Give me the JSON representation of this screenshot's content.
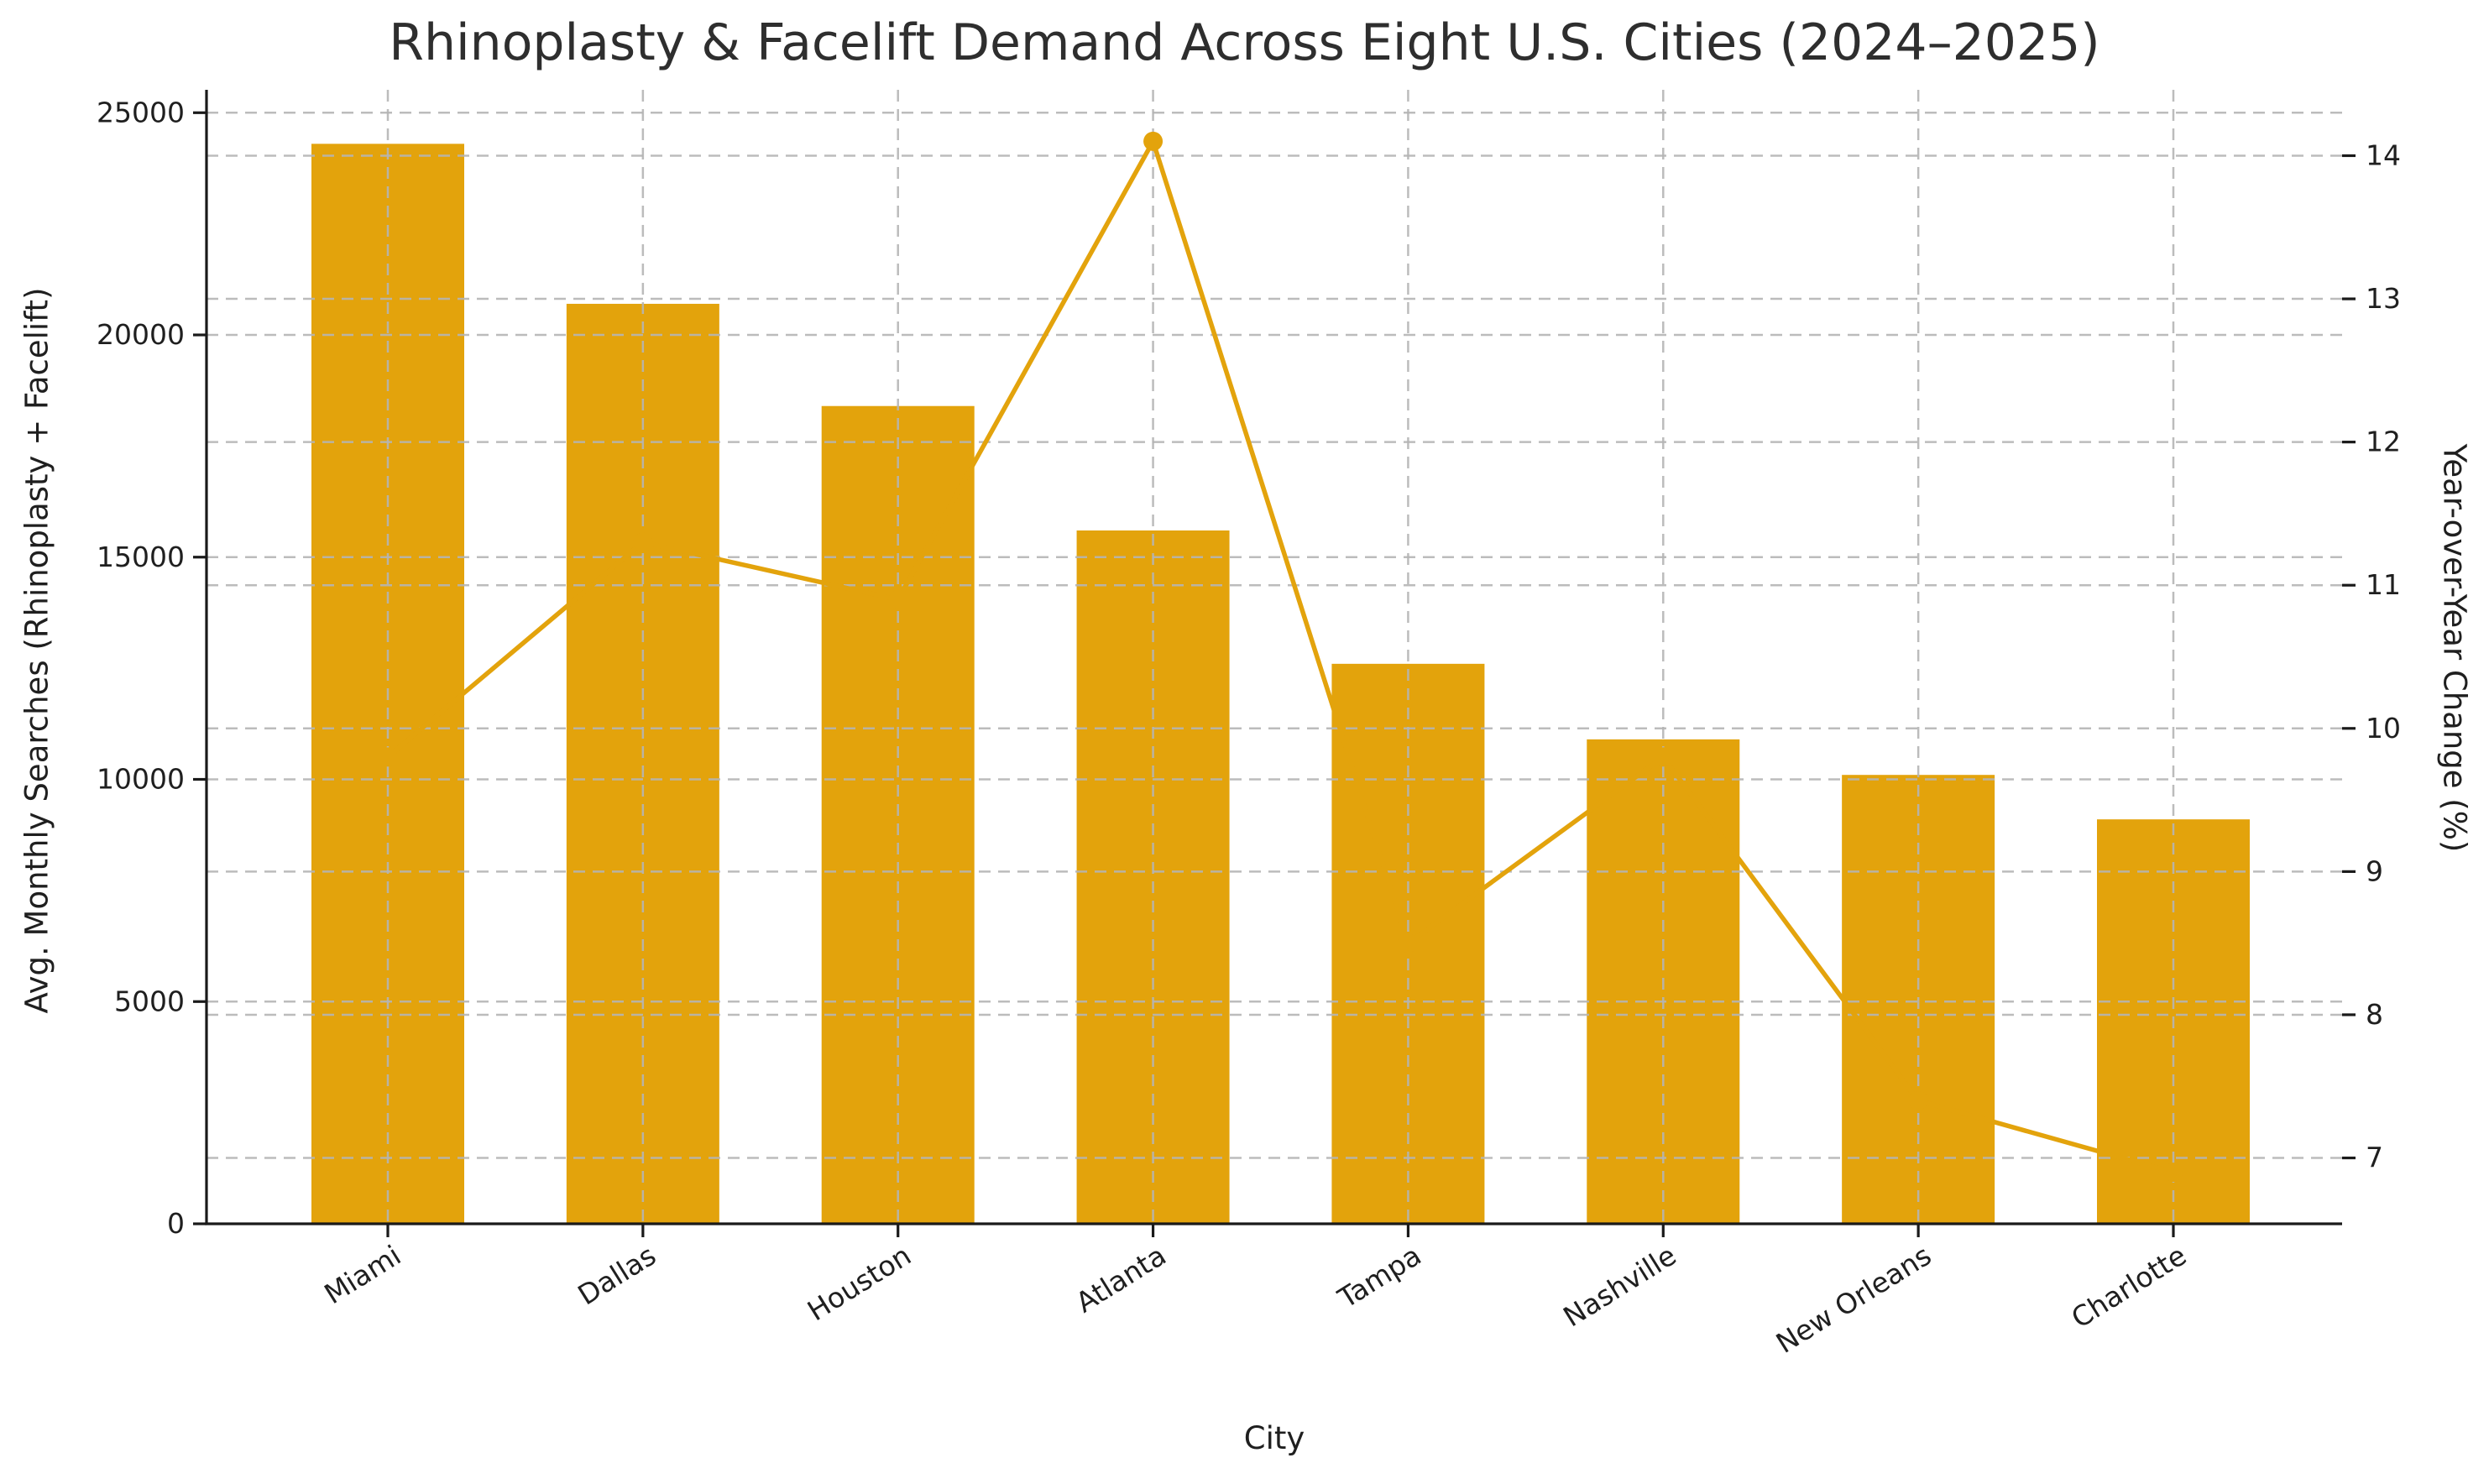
{
  "figure": {
    "title": "Rhinoplasty & Facelift Demand Across Eight U.S. Cities (2024–2025)",
    "background_color": "#ffffff"
  },
  "chart_data": {
    "type": "bar",
    "subtype": "bar-and-line-dual-axis",
    "title": "Rhinoplasty & Facelift Demand Across Eight U.S. Cities (2024–2025)",
    "xlabel": "City",
    "ylabel_left": "Avg. Monthly Searches (Rhinoplasty + Facelift)",
    "ylabel_right": "Year-over-Year Change (%)",
    "categories": [
      "Miami",
      "Dallas",
      "Houston",
      "Atlanta",
      "Tampa",
      "Nashville",
      "New Orleans",
      "Charlotte"
    ],
    "series": [
      {
        "name": "Avg. Monthly Searches (Rhinoplasty + Facelift)",
        "type": "bar",
        "axis": "left",
        "values": [
          24300,
          20700,
          18400,
          15600,
          12600,
          10900,
          10100,
          9100
        ],
        "color": "#E3A30C"
      },
      {
        "name": "Year-over-Year Change (%)",
        "type": "line",
        "axis": "right",
        "marker": "circle",
        "values": [
          9.8,
          11.3,
          10.9,
          14.1,
          8.5,
          9.8,
          7.4,
          6.9
        ],
        "color": "#E3A30C"
      }
    ],
    "yticks_left": [
      0,
      5000,
      10000,
      15000,
      20000,
      25000
    ],
    "yticks_right": [
      7,
      8,
      9,
      10,
      11,
      12,
      13,
      14
    ],
    "ylim_left": [
      0,
      25515
    ],
    "ylim_right": [
      6.54,
      14.46
    ],
    "grid": true,
    "grid_style": "dashed",
    "legend_position": "none",
    "colors": {
      "accent": "#E3A30C",
      "grid": "#b5b5b5",
      "spine": "#1a1a1a",
      "text": "#1f1f1f",
      "title": "#2e2e2e"
    }
  }
}
